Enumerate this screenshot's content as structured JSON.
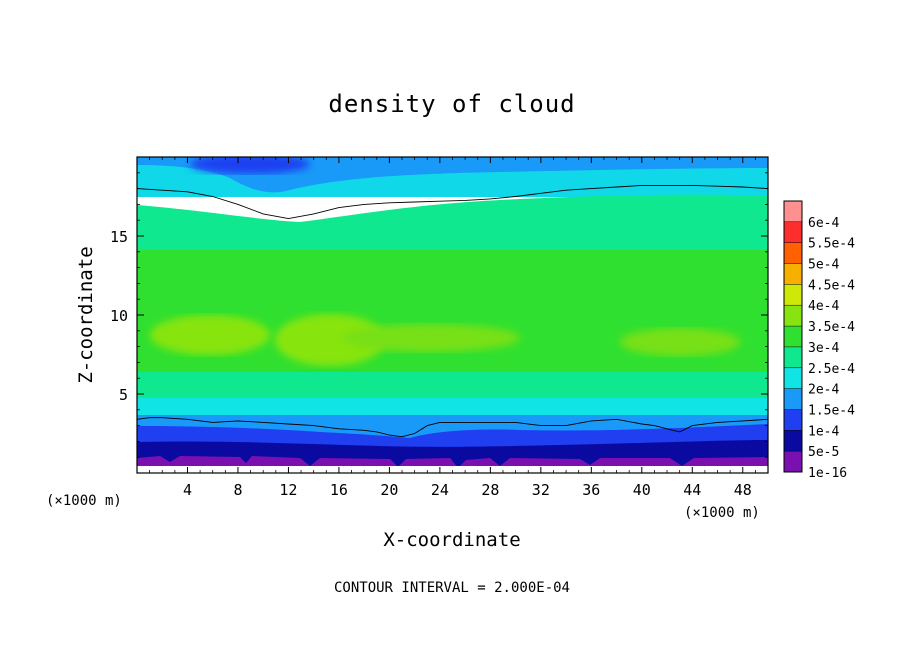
{
  "chart_data": {
    "type": "heatmap",
    "subtype": "filled-contour",
    "title": "density of cloud",
    "xlabel": "X-coordinate",
    "ylabel": "Z-coordinate",
    "x_unit_label": "(×1000 m)",
    "z_unit_label": "(×1000 m)",
    "xlim": [
      0,
      50
    ],
    "ylim": [
      0,
      20
    ],
    "x_ticks": [
      "4",
      "8",
      "12",
      "16",
      "20",
      "24",
      "28",
      "32",
      "36",
      "40",
      "44",
      "48"
    ],
    "y_ticks": [
      "5",
      "10",
      "15"
    ],
    "colorbar": {
      "labels": [
        "1e-16",
        "5e-5",
        "1e-4",
        "1.5e-4",
        "2e-4",
        "2.5e-4",
        "3e-4",
        "3.5e-4",
        "4e-4",
        "4.5e-4",
        "5e-4",
        "5.5e-4",
        "6e-4"
      ],
      "values": [
        1e-16,
        5e-05,
        0.0001,
        0.00015,
        0.0002,
        0.00025,
        0.0003,
        0.00035,
        0.0004,
        0.00045,
        0.0005,
        0.00055,
        0.0006
      ],
      "colors": [
        "#7a10b0",
        "#0a0aa0",
        "#1f3ff0",
        "#1a9af8",
        "#10e4e4",
        "#10e890",
        "#30e030",
        "#88e410",
        "#d0e808",
        "#f8b000",
        "#ff6000",
        "#ff2e2e",
        "#ff9090"
      ]
    },
    "contour_lines": [
      {
        "level": 0.0002,
        "x": [
          0,
          2,
          4,
          6,
          8,
          10,
          12,
          14,
          16,
          18,
          20,
          22,
          24,
          26,
          28,
          30,
          32,
          34,
          36,
          38,
          40,
          42,
          44,
          46,
          48,
          50
        ],
        "z": [
          18.0,
          17.9,
          17.8,
          17.5,
          17.0,
          16.4,
          16.1,
          16.4,
          16.8,
          17.0,
          17.1,
          17.15,
          17.2,
          17.25,
          17.35,
          17.5,
          17.7,
          17.9,
          18.0,
          18.1,
          18.2,
          18.2,
          18.2,
          18.15,
          18.1,
          18.0
        ]
      },
      {
        "level": 5e-05,
        "x": [
          0,
          1,
          2,
          4,
          6,
          8,
          10,
          12,
          14,
          16,
          18,
          19,
          20,
          21,
          22,
          23,
          24,
          26,
          28,
          30,
          32,
          34,
          36,
          38,
          40,
          41,
          42,
          43,
          44,
          46,
          48,
          50
        ],
        "z": [
          3.4,
          3.5,
          3.5,
          3.4,
          3.2,
          3.3,
          3.2,
          3.1,
          3.0,
          2.8,
          2.7,
          2.6,
          2.4,
          2.3,
          2.5,
          3.0,
          3.2,
          3.2,
          3.2,
          3.2,
          3.0,
          3.0,
          3.3,
          3.4,
          3.1,
          3.0,
          2.8,
          2.6,
          3.0,
          3.2,
          3.3,
          3.4
        ]
      }
    ]
  },
  "footer": {
    "contour_interval": "CONTOUR INTERVAL = 2.000E-04"
  }
}
